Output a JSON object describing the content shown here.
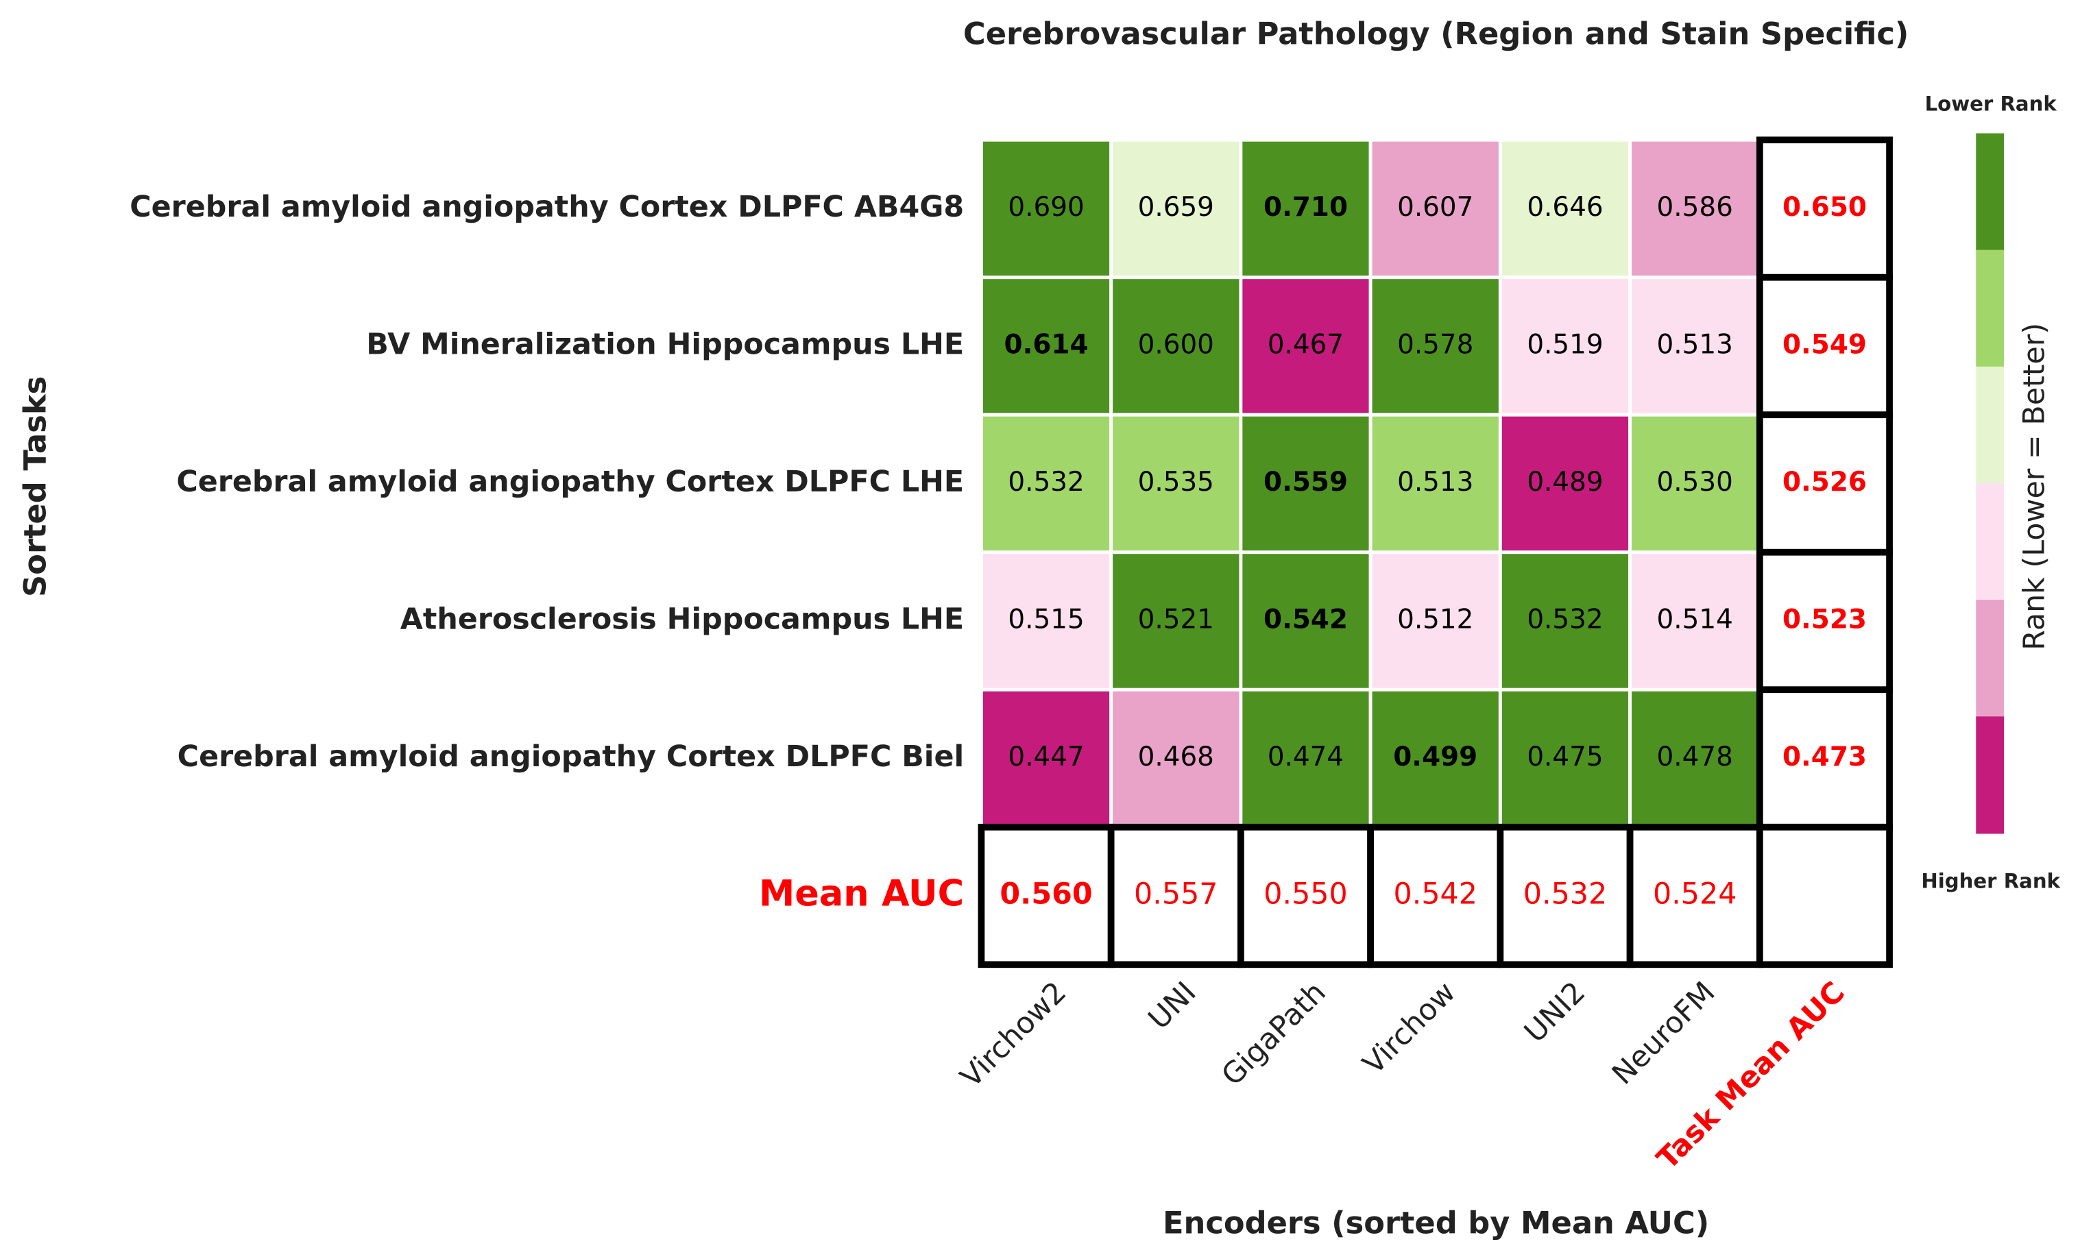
{
  "chart_data": {
    "type": "heatmap",
    "title": "Cerebrovascular Pathology (Region and Stain Specific)",
    "xlabel": "Encoders (sorted by Mean AUC)",
    "ylabel": "Sorted Tasks",
    "rows": [
      "Cerebral amyloid angiopathy Cortex DLPFC AB4G8",
      "BV Mineralization Hippocampus LHE",
      "Cerebral amyloid angiopathy Cortex DLPFC LHE",
      "Atherosclerosis Hippocampus LHE",
      "Cerebral amyloid angiopathy Cortex DLPFC Biel"
    ],
    "columns": [
      "Virchow2",
      "UNI",
      "GigaPath",
      "Virchow",
      "UNI2",
      "NeuroFM"
    ],
    "values": [
      [
        0.69,
        0.659,
        0.71,
        0.607,
        0.646,
        0.586
      ],
      [
        0.614,
        0.6,
        0.467,
        0.578,
        0.519,
        0.513
      ],
      [
        0.532,
        0.535,
        0.559,
        0.513,
        0.489,
        0.53
      ],
      [
        0.515,
        0.521,
        0.542,
        0.512,
        0.532,
        0.514
      ],
      [
        0.447,
        0.468,
        0.474,
        0.499,
        0.475,
        0.478
      ]
    ],
    "value_labels": [
      [
        "0.690",
        "0.659",
        "0.710",
        "0.607",
        "0.646",
        "0.586"
      ],
      [
        "0.614",
        "0.600",
        "0.467",
        "0.578",
        "0.519",
        "0.513"
      ],
      [
        "0.532",
        "0.535",
        "0.559",
        "0.513",
        "0.489",
        "0.530"
      ],
      [
        "0.515",
        "0.521",
        "0.542",
        "0.512",
        "0.532",
        "0.514"
      ],
      [
        "0.447",
        "0.468",
        "0.474",
        "0.499",
        "0.475",
        "0.478"
      ]
    ],
    "colors": [
      [
        "#4d9221",
        "#e6f5d0",
        "#4d9221",
        "#e9a3c9",
        "#e6f5d0",
        "#e9a3c9"
      ],
      [
        "#4d9221",
        "#4d9221",
        "#c51b7d",
        "#4d9221",
        "#fde0ef",
        "#fde0ef"
      ],
      [
        "#a1d76a",
        "#a1d76a",
        "#4d9221",
        "#a1d76a",
        "#c51b7d",
        "#a1d76a"
      ],
      [
        "#fde0ef",
        "#4d9221",
        "#4d9221",
        "#fde0ef",
        "#4d9221",
        "#fde0ef"
      ],
      [
        "#c51b7d",
        "#e9a3c9",
        "#4d9221",
        "#4d9221",
        "#4d9221",
        "#4d9221"
      ]
    ],
    "mean_row_label": "Mean AUC",
    "mean_row": {
      "values": [
        0.56,
        0.557,
        0.55,
        0.542,
        0.532,
        0.524
      ],
      "value_labels": [
        "0.560",
        "0.557",
        "0.550",
        "0.542",
        "0.532",
        "0.524"
      ]
    },
    "mean_column_label": "Task Mean AUC",
    "mean_column": {
      "values": [
        0.65,
        0.549,
        0.526,
        0.523,
        0.473
      ],
      "value_labels": [
        "0.650",
        "0.549",
        "0.526",
        "0.523",
        "0.473"
      ]
    },
    "highlight_color": "#ff0000",
    "colorbar": {
      "label": "Rank (Lower = Better)",
      "top_label": "Lower Rank",
      "bottom_label": "Higher Rank",
      "colors": [
        "#4d9221",
        "#a1d76a",
        "#e6f5d0",
        "#fde0ef",
        "#e9a3c9",
        "#c51b7d"
      ]
    }
  }
}
